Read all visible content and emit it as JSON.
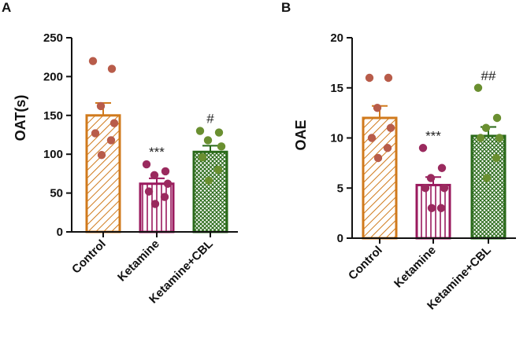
{
  "colors": {
    "control": "#d07a1c",
    "control_dot": "#b85c4a",
    "ketamine": "#9a1a5e",
    "ketamine_dot": "#9a2a5e",
    "cbl": "#2a6a1a",
    "cbl_dot": "#6a8f30",
    "axis": "#111111"
  },
  "chart_data": [
    {
      "type": "bar",
      "panel_label": "A",
      "title": "",
      "xlabel": "",
      "ylabel": "OAT(s)",
      "ylim": [
        0,
        250
      ],
      "yticks": [
        0,
        50,
        100,
        150,
        200,
        250
      ],
      "categories": [
        "Control",
        "Ketamine",
        "Ketamine+CBL"
      ],
      "values": [
        150,
        62,
        103
      ],
      "sem": [
        16,
        7,
        8
      ],
      "significance": [
        "",
        "***",
        "#"
      ],
      "points": [
        [
          220,
          210,
          162,
          140,
          127,
          118,
          99
        ],
        [
          87,
          78,
          73,
          62,
          52,
          45,
          36
        ],
        [
          130,
          128,
          118,
          110,
          96,
          80,
          66
        ]
      ]
    },
    {
      "type": "bar",
      "panel_label": "B",
      "title": "",
      "xlabel": "",
      "ylabel": "OAE",
      "ylim": [
        0,
        20
      ],
      "yticks": [
        0,
        5,
        10,
        15,
        20
      ],
      "categories": [
        "Control",
        "Ketamine",
        "Ketamine+CBL"
      ],
      "values": [
        12,
        5.3,
        10.2
      ],
      "sem": [
        1.2,
        0.8,
        0.9
      ],
      "significance": [
        "",
        "***",
        "##"
      ],
      "points": [
        [
          16,
          16,
          13,
          11,
          10,
          9,
          8
        ],
        [
          9,
          7,
          6,
          5,
          5,
          3,
          3
        ],
        [
          15,
          12,
          11,
          10,
          10,
          8,
          6
        ]
      ]
    }
  ]
}
